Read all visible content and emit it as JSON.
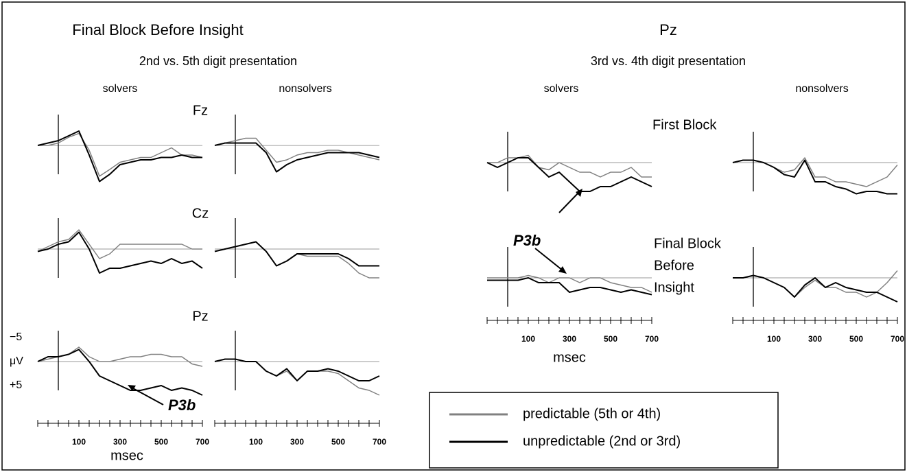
{
  "left": {
    "title": "Final Block Before Insight",
    "subtitle": "2nd vs. 5th digit presentation",
    "columns": [
      "solvers",
      "nonsolvers"
    ],
    "rows": [
      "Fz",
      "Cz",
      "Pz"
    ],
    "annotation": "P3b",
    "xlabel": "msec",
    "ylabel": "μV"
  },
  "right": {
    "title": "Pz",
    "subtitle": "3rd vs. 4th digit presentation",
    "columns": [
      "solvers",
      "nonsolvers"
    ],
    "rows": [
      [
        "First Block"
      ],
      [
        "Final Block",
        "Before",
        "Insight"
      ]
    ],
    "annotation": "P3b",
    "xlabel": "msec"
  },
  "legend": [
    {
      "name": "predictable (5th or 4th)",
      "color": "#808080"
    },
    {
      "name": "unpredictable (2nd or 3rd)",
      "color": "#000000"
    }
  ],
  "x": [
    -100,
    -50,
    0,
    50,
    100,
    150,
    200,
    250,
    300,
    350,
    400,
    450,
    500,
    550,
    600,
    650,
    700
  ],
  "xlim": [
    -100,
    700
  ],
  "xticks": [
    100,
    300,
    500,
    700
  ],
  "xminorticks": [
    -100,
    -50,
    0,
    50,
    150,
    200,
    250,
    350,
    400,
    450,
    550,
    600,
    650
  ],
  "ylim": [
    -5,
    5
  ],
  "y_inverted": true,
  "yticks": [
    {
      "value": -5,
      "label": "−5"
    },
    {
      "value": 5,
      "label": "+5"
    }
  ],
  "chart_data": [
    {
      "type": "line",
      "series": [
        {
          "values": [
            0,
            0,
            -0.5,
            -1.7,
            -2.5,
            1,
            6.4,
            5,
            3.5,
            3,
            2.5,
            2.5,
            1.5,
            0.5,
            2,
            2,
            2.5
          ]
        },
        {
          "values": [
            0,
            -0.5,
            -1,
            -2,
            -3,
            2,
            7.5,
            6,
            4,
            3.5,
            3,
            3,
            2.5,
            2.5,
            2,
            2.5,
            2.5
          ]
        }
      ]
    },
    {
      "type": "line",
      "series": [
        {
          "values": [
            0,
            -0.5,
            -1,
            -1.5,
            -1.5,
            1,
            3.5,
            3,
            2,
            1.5,
            1.5,
            1,
            1,
            1.5,
            2,
            2.5,
            3
          ]
        },
        {
          "values": [
            0,
            -0.5,
            -0.5,
            -0.5,
            -0.5,
            1.5,
            5.5,
            4,
            3,
            2.5,
            2,
            1.5,
            1.5,
            1.5,
            1.5,
            2,
            2.5
          ]
        }
      ]
    },
    {
      "type": "line",
      "series": [
        {
          "values": [
            0.5,
            -0.5,
            -1.5,
            -2,
            -4,
            -1,
            2,
            1,
            -1,
            -1,
            -1,
            -1,
            -1,
            -1,
            -1,
            0,
            0
          ]
        },
        {
          "values": [
            0.5,
            0,
            -1,
            -1.5,
            -3.5,
            0,
            5,
            4,
            4,
            3.5,
            3,
            2.5,
            3,
            2,
            3,
            2.5,
            4
          ]
        }
      ]
    },
    {
      "type": "line",
      "series": [
        {
          "values": [
            0.5,
            0,
            -0.5,
            -1,
            -1.5,
            0.5,
            3.5,
            2.5,
            1,
            1.5,
            1.5,
            1.5,
            1.5,
            3,
            5,
            6,
            6
          ]
        },
        {
          "values": [
            0.5,
            0,
            -0.5,
            -1,
            -1.5,
            0.5,
            3.5,
            2.5,
            1,
            1,
            1,
            1,
            1,
            2,
            3.5,
            3.5,
            3.5
          ]
        }
      ]
    },
    {
      "type": "line",
      "series": [
        {
          "values": [
            0,
            -0.5,
            -1,
            -1.5,
            -3,
            -1,
            0,
            0,
            -0.5,
            -1,
            -1,
            -1.5,
            -1.5,
            -1,
            -1,
            0.5,
            1
          ]
        },
        {
          "values": [
            0,
            -1,
            -1,
            -1.5,
            -2.5,
            0,
            3,
            4,
            5,
            6,
            6,
            5.5,
            5,
            6,
            5.5,
            6,
            7
          ]
        }
      ]
    },
    {
      "type": "line",
      "series": [
        {
          "values": [
            0,
            -0.5,
            -0.5,
            0,
            0,
            2,
            3,
            2,
            4,
            2,
            2,
            2,
            2.5,
            4,
            5.5,
            6,
            7
          ]
        },
        {
          "values": [
            0,
            -0.5,
            -0.5,
            0,
            0,
            2,
            3,
            1.5,
            4,
            2,
            2,
            1.5,
            2,
            3,
            4,
            4,
            3
          ]
        }
      ]
    },
    {
      "type": "line",
      "series": [
        {
          "values": [
            0,
            0,
            -1,
            -1,
            -1.5,
            1,
            1.5,
            0,
            1,
            2,
            2,
            3,
            2,
            2,
            1,
            3,
            3
          ]
        },
        {
          "values": [
            0,
            1,
            0,
            -1,
            -1,
            1,
            3,
            2,
            4,
            6,
            6,
            5,
            5,
            4,
            3,
            4,
            5
          ]
        }
      ]
    },
    {
      "type": "line",
      "series": [
        {
          "values": [
            0,
            -0.5,
            -0.5,
            0,
            1,
            2,
            1.5,
            -1,
            3,
            3,
            4,
            4,
            4.5,
            5,
            4,
            3,
            0.5
          ]
        },
        {
          "values": [
            0,
            -0.5,
            -0.5,
            0,
            1,
            2.5,
            3,
            -0.5,
            4,
            4,
            5,
            5.5,
            6.5,
            6,
            6,
            6.5,
            6.5
          ]
        }
      ]
    },
    {
      "type": "line",
      "series": [
        {
          "values": [
            0,
            0,
            0,
            0,
            -0.5,
            0,
            1,
            0,
            0,
            1,
            0,
            0,
            1,
            1.5,
            2,
            2,
            3
          ]
        },
        {
          "values": [
            0.5,
            0.5,
            0.5,
            0.5,
            0,
            1,
            1,
            1,
            3,
            2.5,
            2,
            2,
            2.5,
            3,
            2.5,
            3,
            3.5
          ]
        }
      ]
    },
    {
      "type": "line",
      "series": [
        {
          "values": [
            0,
            0,
            -0.5,
            0,
            1,
            2,
            4,
            2,
            0.5,
            2,
            2,
            3,
            3,
            4,
            3,
            1,
            -1.5
          ]
        },
        {
          "values": [
            0,
            0,
            -0.5,
            0,
            1,
            2,
            4,
            1.5,
            0,
            2,
            1,
            2,
            2.5,
            3,
            3,
            4,
            5
          ]
        }
      ]
    }
  ]
}
